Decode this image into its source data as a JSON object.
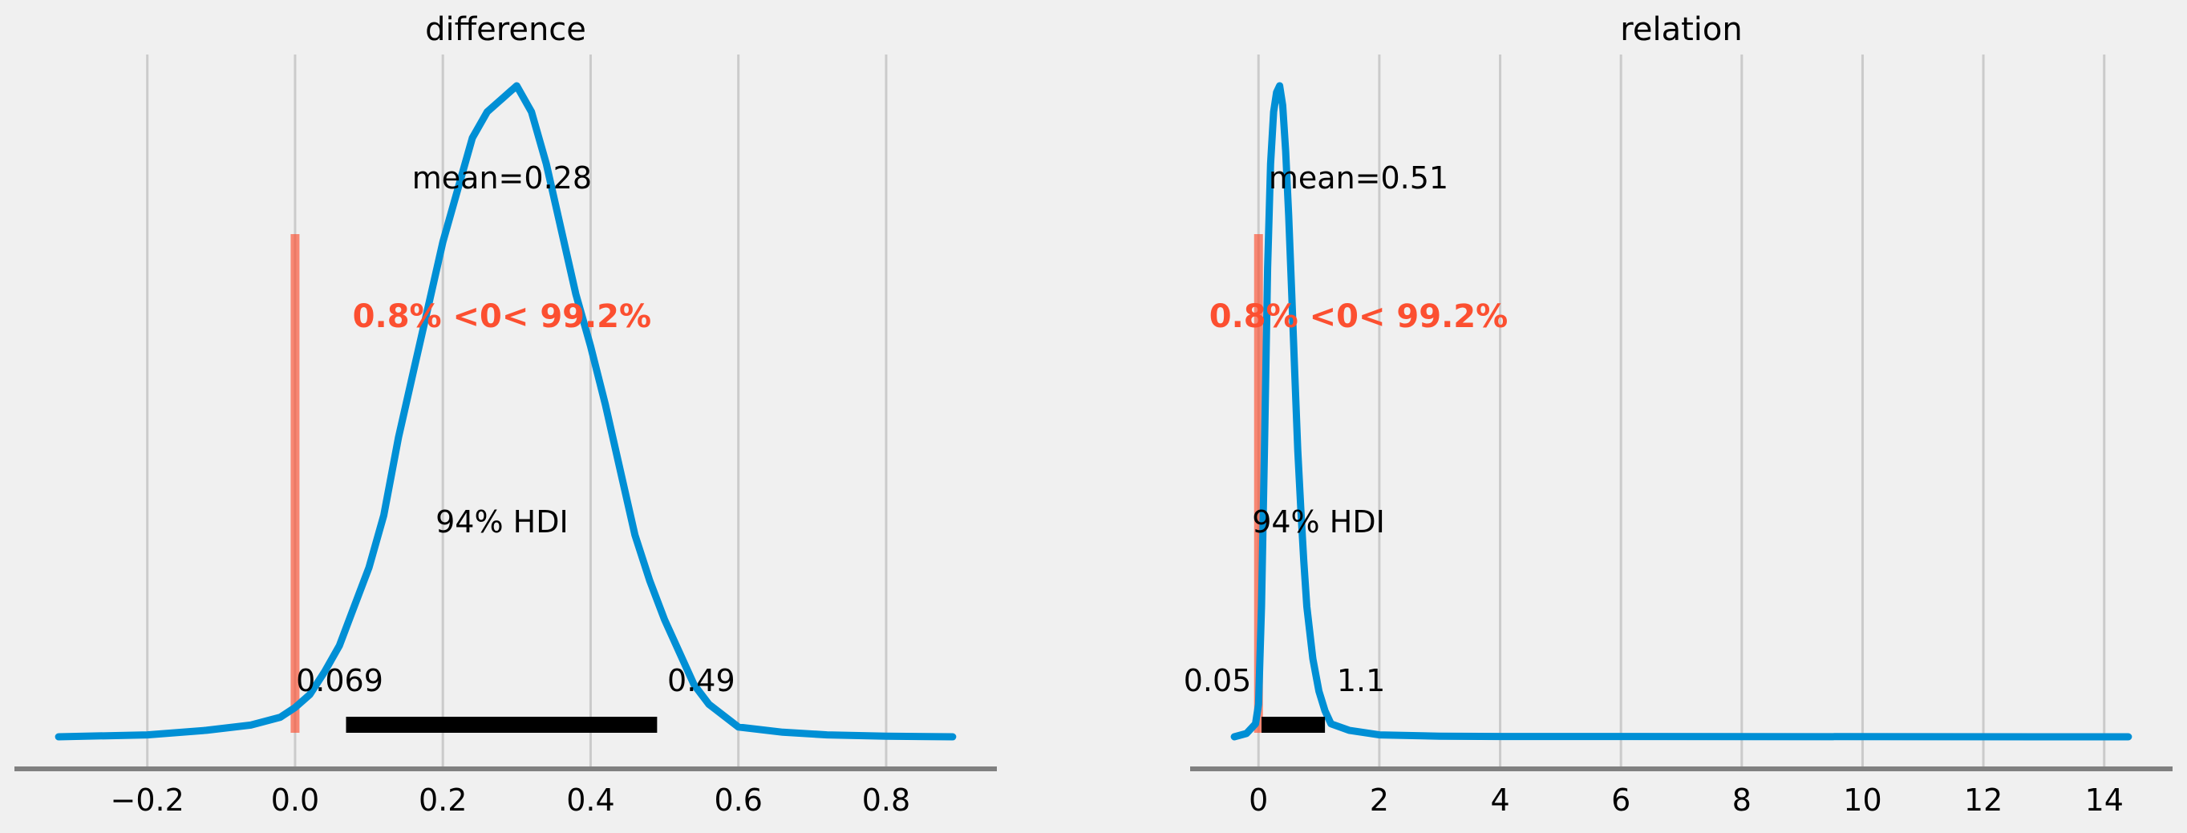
{
  "chart_data": [
    {
      "type": "density",
      "title": "difference",
      "xlim": [
        -0.32,
        0.89
      ],
      "xticks": [
        -0.2,
        0.0,
        0.2,
        0.4,
        0.6,
        0.8
      ],
      "xtick_labels": [
        "−0.2",
        "0.0",
        "0.2",
        "0.4",
        "0.6",
        "0.8"
      ],
      "grid": true,
      "ref_val": 0,
      "ref_label": "0.8% <0< 99.2%",
      "mean_label": "mean=0.28",
      "hdi_label": "94% HDI",
      "hdi": [
        0.069,
        0.49
      ],
      "hdi_low_label": "0.069",
      "hdi_high_label": "0.49",
      "density": [
        [
          -0.32,
          0.0
        ],
        [
          -0.2,
          0.3
        ],
        [
          -0.12,
          1.0
        ],
        [
          -0.06,
          1.8
        ],
        [
          -0.02,
          3.0
        ],
        [
          0.0,
          4.5
        ],
        [
          0.02,
          6.5
        ],
        [
          0.04,
          10.0
        ],
        [
          0.06,
          14.0
        ],
        [
          0.08,
          20.0
        ],
        [
          0.1,
          26.0
        ],
        [
          0.12,
          34.0
        ],
        [
          0.14,
          46.0
        ],
        [
          0.16,
          56.0
        ],
        [
          0.18,
          66.0
        ],
        [
          0.2,
          76.0
        ],
        [
          0.22,
          84.0
        ],
        [
          0.24,
          92.0
        ],
        [
          0.26,
          96.0
        ],
        [
          0.28,
          98.0
        ],
        [
          0.3,
          100.0
        ],
        [
          0.32,
          96.0
        ],
        [
          0.34,
          88.0
        ],
        [
          0.36,
          78.0
        ],
        [
          0.38,
          68.0
        ],
        [
          0.4,
          60.0
        ],
        [
          0.42,
          51.0
        ],
        [
          0.44,
          41.0
        ],
        [
          0.46,
          31.0
        ],
        [
          0.48,
          24.0
        ],
        [
          0.5,
          18.0
        ],
        [
          0.52,
          13.0
        ],
        [
          0.54,
          8.0
        ],
        [
          0.56,
          5.0
        ],
        [
          0.6,
          1.5
        ],
        [
          0.66,
          0.7
        ],
        [
          0.72,
          0.3
        ],
        [
          0.8,
          0.1
        ],
        [
          0.89,
          0.0
        ]
      ]
    },
    {
      "type": "density",
      "title": "relation",
      "xlim": [
        -0.4,
        14.4
      ],
      "xticks": [
        0,
        2,
        4,
        6,
        8,
        10,
        12,
        14
      ],
      "xtick_labels": [
        "0",
        "2",
        "4",
        "6",
        "8",
        "10",
        "12",
        "14"
      ],
      "grid": true,
      "ref_val": 0,
      "ref_label": "0.8% <0< 99.2%",
      "mean_label": "mean=0.51",
      "hdi_label": "94% HDI",
      "hdi": [
        0.05,
        1.1
      ],
      "hdi_low_label": "0.05",
      "hdi_high_label": "1.1",
      "density": [
        [
          -0.4,
          0.0
        ],
        [
          -0.2,
          0.5
        ],
        [
          -0.05,
          2.0
        ],
        [
          0.0,
          5.0
        ],
        [
          0.05,
          20.0
        ],
        [
          0.1,
          45.0
        ],
        [
          0.15,
          72.0
        ],
        [
          0.2,
          88.0
        ],
        [
          0.25,
          96.0
        ],
        [
          0.3,
          99.0
        ],
        [
          0.35,
          100.0
        ],
        [
          0.4,
          97.0
        ],
        [
          0.45,
          90.0
        ],
        [
          0.5,
          80.0
        ],
        [
          0.55,
          68.0
        ],
        [
          0.6,
          56.0
        ],
        [
          0.65,
          44.0
        ],
        [
          0.7,
          35.0
        ],
        [
          0.75,
          27.0
        ],
        [
          0.8,
          20.0
        ],
        [
          0.9,
          12.0
        ],
        [
          1.0,
          7.0
        ],
        [
          1.1,
          4.0
        ],
        [
          1.2,
          2.0
        ],
        [
          1.5,
          1.0
        ],
        [
          2.0,
          0.3
        ],
        [
          3.0,
          0.1
        ],
        [
          4.0,
          0.05
        ],
        [
          14.4,
          0.0
        ]
      ]
    }
  ],
  "colors": {
    "background": "#f0f0f0",
    "density": "#008fd5",
    "ref_line": "#fc4f30",
    "ref_text": "#fc4f30",
    "hdi_bar": "#000000",
    "grid": "#cbcbcb",
    "axis_line": "#808080",
    "text": "#000000"
  }
}
